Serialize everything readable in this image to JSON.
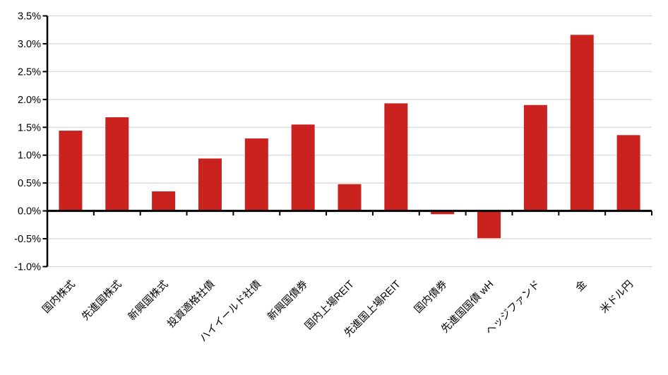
{
  "chart_data": {
    "type": "bar",
    "categories": [
      "国内株式",
      "先進国株式",
      "新興国株式",
      "投資適格社債",
      "ハイイールド社債",
      "新興国債券",
      "国内上場REIT",
      "先進国上場REIT",
      "国内債券",
      "先進国国債 wH",
      "ヘッジファンド",
      "金",
      "米ドル円"
    ],
    "values": [
      1.44,
      1.68,
      0.35,
      0.94,
      1.3,
      1.55,
      0.48,
      1.93,
      -0.06,
      -0.49,
      1.9,
      3.16,
      1.36
    ],
    "unit": "%",
    "ylim": [
      -1.0,
      3.5
    ],
    "ytick_step": 0.5,
    "ytick_labels": [
      "3.5%",
      "3.0%",
      "2.5%",
      "2.0%",
      "1.5%",
      "1.0%",
      "0.5%",
      "0.0%",
      "-0.5%",
      "-1.0%"
    ],
    "grid": true,
    "legend": false,
    "colors": {
      "bar": "#C9221F",
      "gridline": "#D9D9D9",
      "axis": "#000000",
      "background": "#FFFFFF"
    }
  }
}
